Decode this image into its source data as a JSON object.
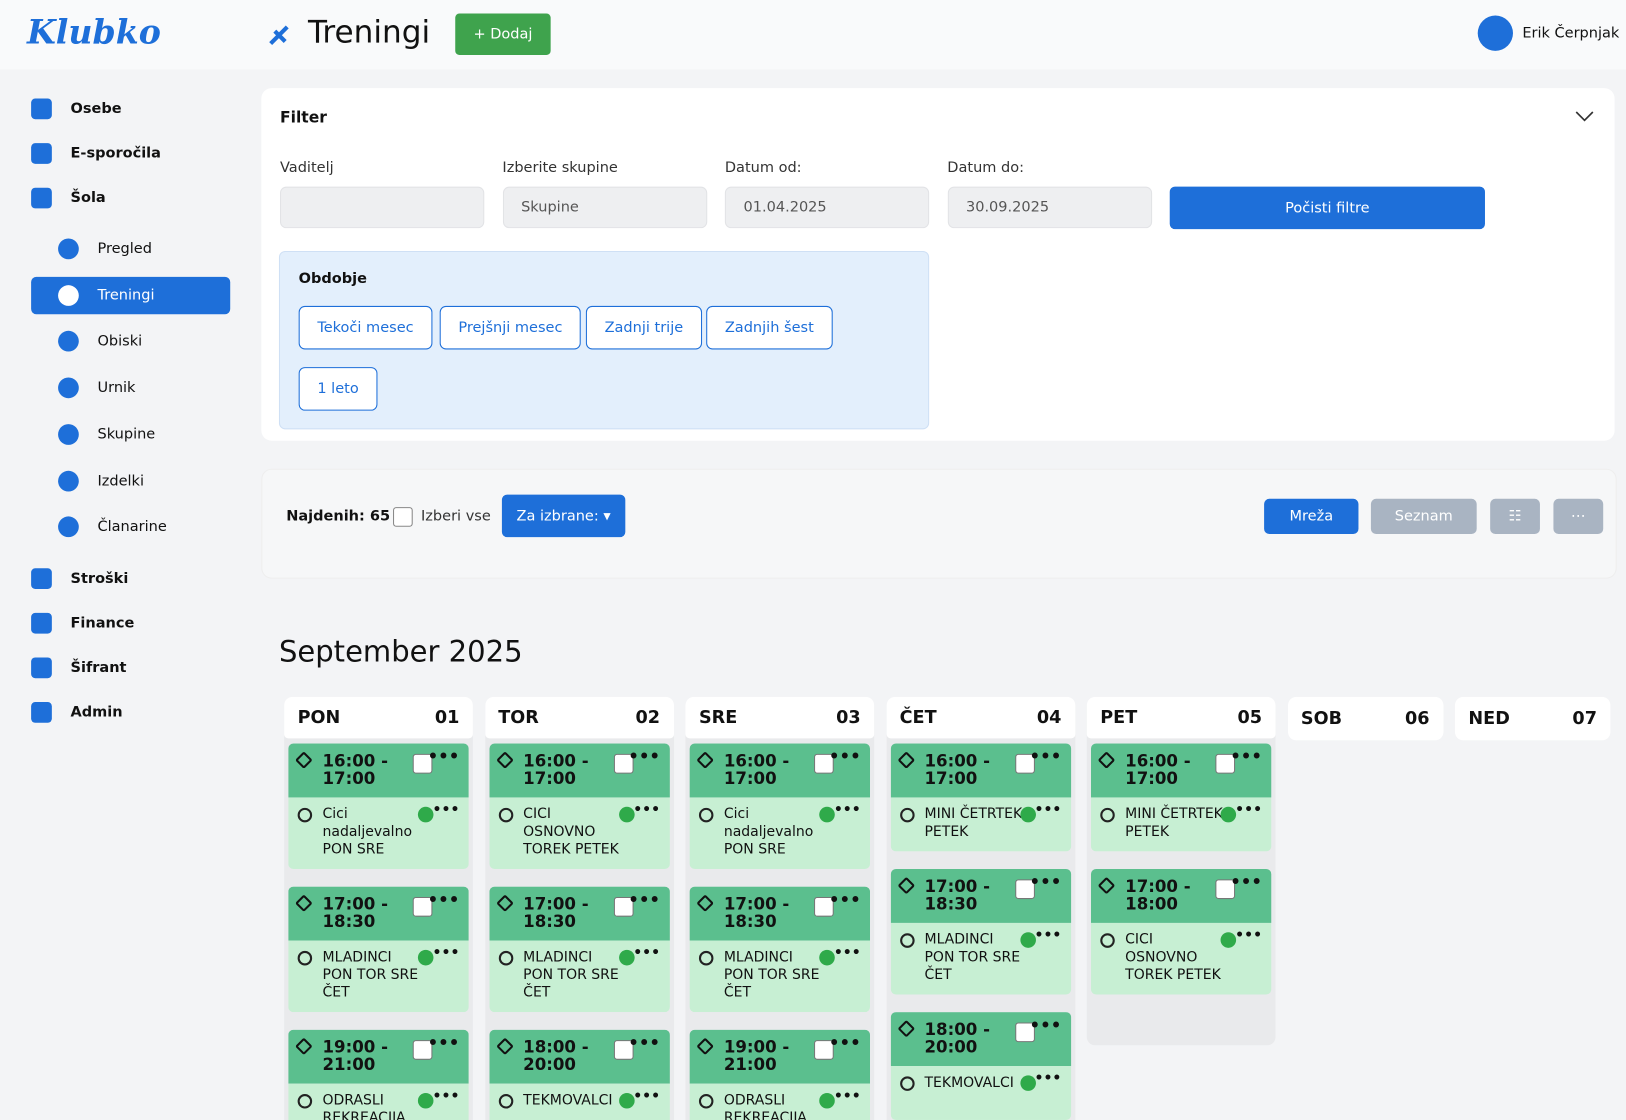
{
  "header": {
    "logo": "Klubko",
    "title": "Treningi",
    "add_button": "+ Dodaj",
    "user": "Erik Čerpnjak"
  },
  "sidebar": [
    {
      "label": "Osebe"
    },
    {
      "label": "E-sporočila"
    },
    {
      "label": "Šola",
      "children": [
        {
          "label": "Pregled"
        },
        {
          "label": "Treningi",
          "active": true
        },
        {
          "label": "Obiski"
        },
        {
          "label": "Urnik"
        },
        {
          "label": "Skupine"
        },
        {
          "label": "Izdelki"
        },
        {
          "label": "Članarine"
        }
      ]
    },
    {
      "label": "Stroški"
    },
    {
      "label": "Finance"
    },
    {
      "label": "Šifrant"
    },
    {
      "label": "Admin"
    }
  ],
  "filter": {
    "title": "Filter",
    "fields": [
      {
        "label": "Vaditelj",
        "value": ""
      },
      {
        "label": "Izberite skupine",
        "value": "Skupine"
      },
      {
        "label": "Datum od:",
        "value": "01.04.2025"
      },
      {
        "label": "Datum do:",
        "value": "30.09.2025"
      }
    ],
    "clear_button": "Počisti filtre",
    "period": {
      "title": "Obdobje",
      "buttons": [
        "Tekoči mesec",
        "Prejšnji mesec",
        "Zadnji trije",
        "Zadnjih šest",
        "1 leto"
      ]
    }
  },
  "toolbar": {
    "found": "Najdenih: 65",
    "select_all": "Izberi vse",
    "bulk_button": "Za izbrane:",
    "views": [
      "Mreža",
      "Seznam"
    ]
  },
  "calendar": {
    "month": "September 2025",
    "days": [
      {
        "name": "PON",
        "num": "01",
        "events": [
          {
            "time": "16:00 - 17:00",
            "group": "Cici nadaljevalno PON SRE"
          },
          {
            "time": "17:00 - 18:30",
            "group": "MLADINCI PON TOR SRE ČET"
          },
          {
            "time": "19:00 - 21:00",
            "group": "ODRASLI REKREACIJA"
          }
        ]
      },
      {
        "name": "TOR",
        "num": "02",
        "events": [
          {
            "time": "16:00 - 17:00",
            "group": "CICI OSNOVNO TOREK PETEK"
          },
          {
            "time": "17:00 - 18:30",
            "group": "MLADINCI PON TOR SRE ČET"
          },
          {
            "time": "18:00 - 20:00",
            "group": "TEKMOVALCI"
          }
        ]
      },
      {
        "name": "SRE",
        "num": "03",
        "events": [
          {
            "time": "16:00 - 17:00",
            "group": "Cici nadaljevalno PON SRE"
          },
          {
            "time": "17:00 - 18:30",
            "group": "MLADINCI PON TOR SRE ČET"
          },
          {
            "time": "19:00 - 21:00",
            "group": "ODRASLI REKREACIJA"
          }
        ]
      },
      {
        "name": "ČET",
        "num": "04",
        "events": [
          {
            "time": "16:00 - 17:00",
            "group": "MINI ČETRTEK PETEK"
          },
          {
            "time": "17:00 - 18:30",
            "group": "MLADINCI PON TOR SRE ČET"
          },
          {
            "time": "18:00 - 20:00",
            "group": "TEKMOVALCI"
          }
        ]
      },
      {
        "name": "PET",
        "num": "05",
        "events": [
          {
            "time": "16:00 - 17:00",
            "group": "MINI ČETRTEK PETEK"
          },
          {
            "time": "17:00 - 18:00",
            "group": "CICI OSNOVNO TOREK PETEK"
          }
        ]
      },
      {
        "name": "SOB",
        "num": "06",
        "events": []
      },
      {
        "name": "NED",
        "num": "07",
        "events": []
      }
    ]
  }
}
